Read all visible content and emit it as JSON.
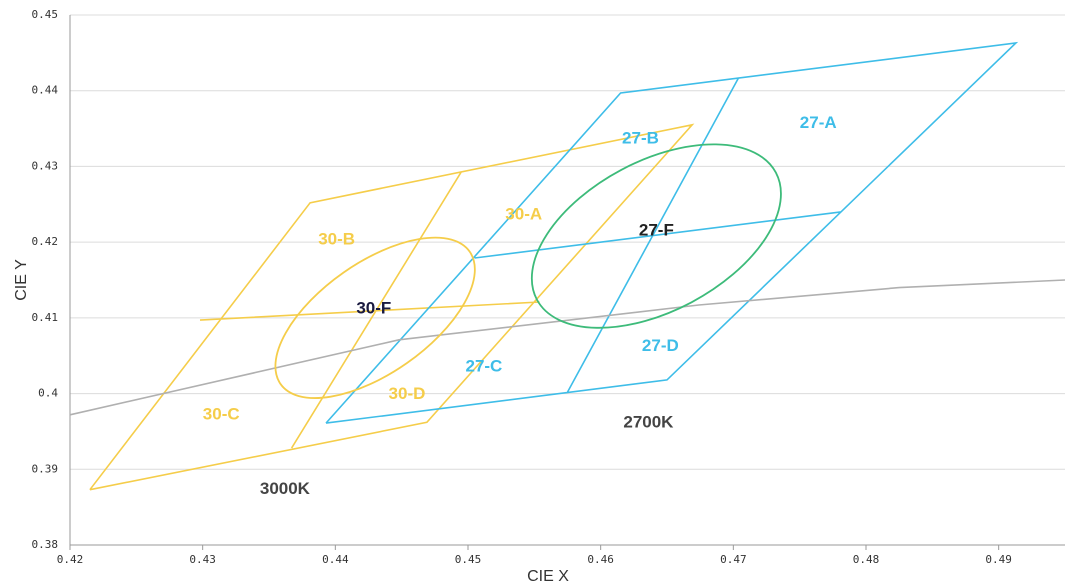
{
  "chart_data": {
    "type": "line",
    "x_label": "CIE X",
    "y_label": "CIE Y",
    "xlim": [
      0.42,
      0.495
    ],
    "ylim": [
      0.38,
      0.45
    ],
    "xticks": [
      0.42,
      0.43,
      0.44,
      0.45,
      0.46,
      0.47,
      0.48,
      0.49
    ],
    "yticks": [
      0.38,
      0.39,
      0.4,
      0.41,
      0.42,
      0.43,
      0.44,
      0.45
    ],
    "grid": true,
    "series": [
      {
        "color": "#f5cd4a",
        "x": [
          0.4215,
          0.4381,
          0.4669,
          0.4469,
          0.4215,
          null,
          0.4367,
          0.4495,
          null,
          0.4298,
          0.4554
        ],
        "y": [
          0.3873,
          0.4252,
          0.4355,
          0.3962,
          0.3873,
          null,
          0.3928,
          0.4293,
          null,
          0.4097,
          0.4121
        ]
      },
      {
        "color": "#3ebde8",
        "x": [
          0.4393,
          0.4615,
          0.4913,
          0.465,
          0.4393,
          null,
          0.4575,
          0.4704,
          null,
          0.4505,
          0.4781
        ],
        "y": [
          0.3961,
          0.4397,
          0.4463,
          0.4018,
          0.3961,
          null,
          0.4002,
          0.4417,
          null,
          0.4179,
          0.424
        ]
      },
      {
        "color": "#b0b0b0",
        "x": [
          0.42,
          0.4448,
          0.4674,
          0.4825,
          0.495
        ],
        "y": [
          0.3972,
          0.4071,
          0.4117,
          0.414,
          0.415
        ]
      }
    ],
    "ellipses": [
      {
        "color": "#f5cd4a",
        "cx": 0.443,
        "cy": 0.41,
        "rx": 0.0087,
        "ry": 0.0073,
        "angle": -35
      },
      {
        "color": "#3dbb7a",
        "cx": 0.4642,
        "cy": 0.4208,
        "rx": 0.0102,
        "ry": 0.0099,
        "angle": -28
      }
    ],
    "annotations": [
      {
        "text": "27-A",
        "x": 0.4764,
        "y": 0.4357,
        "color": "#3ebde8"
      },
      {
        "text": "27-B",
        "x": 0.463,
        "y": 0.4336,
        "color": "#3ebde8"
      },
      {
        "text": "27-C",
        "x": 0.4512,
        "y": 0.4035,
        "color": "#3ebde8"
      },
      {
        "text": "27-D",
        "x": 0.4645,
        "y": 0.4062,
        "color": "#3ebde8"
      },
      {
        "text": "27-F",
        "x": 0.4642,
        "y": 0.4215,
        "color": "#222222"
      },
      {
        "text": "30-A",
        "x": 0.4542,
        "y": 0.4236,
        "color": "#f5cd4a"
      },
      {
        "text": "30-B",
        "x": 0.4401,
        "y": 0.4203,
        "color": "#f5cd4a"
      },
      {
        "text": "30-C",
        "x": 0.4314,
        "y": 0.3972,
        "color": "#f5cd4a"
      },
      {
        "text": "30-D",
        "x": 0.4454,
        "y": 0.3999,
        "color": "#f5cd4a"
      },
      {
        "text": "30-F",
        "x": 0.4429,
        "y": 0.4112,
        "color": "#1a1a40"
      },
      {
        "text": "2700K",
        "x": 0.4636,
        "y": 0.3961,
        "color": "#444444"
      },
      {
        "text": "3000K",
        "x": 0.4362,
        "y": 0.3873,
        "color": "#444444"
      }
    ]
  }
}
